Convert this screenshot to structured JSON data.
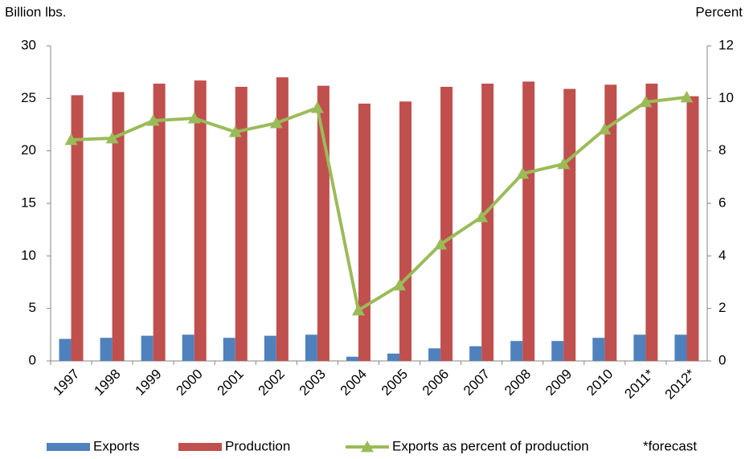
{
  "chart_data": {
    "type": "bar",
    "y_label": "Billion lbs.",
    "y2_label": "Percent",
    "note": "*forecast",
    "categories": [
      "1997",
      "1998",
      "1999",
      "2000",
      "2001",
      "2002",
      "2003",
      "2004",
      "2005",
      "2006",
      "2007",
      "2008",
      "2009",
      "2010",
      "2011*",
      "2012*"
    ],
    "series": [
      {
        "name": "Exports",
        "color": "#4f81bd",
        "type": "bar",
        "values": [
          2.1,
          2.2,
          2.4,
          2.5,
          2.2,
          2.4,
          2.5,
          0.4,
          0.7,
          1.2,
          1.4,
          1.9,
          1.9,
          2.2,
          2.5,
          2.5
        ]
      },
      {
        "name": "Production",
        "color": "#c0504d",
        "type": "bar",
        "values": [
          25.3,
          25.6,
          26.4,
          26.7,
          26.1,
          27.0,
          26.2,
          24.5,
          24.7,
          26.1,
          26.4,
          26.6,
          25.9,
          26.3,
          26.4,
          25.2
        ]
      },
      {
        "name": "Exports as percent of production",
        "color": "#9bbb59",
        "type": "line",
        "axis": "y2",
        "values": [
          8.42,
          8.48,
          9.15,
          9.24,
          8.72,
          9.06,
          9.64,
          1.93,
          2.88,
          4.44,
          5.48,
          7.13,
          7.5,
          8.82,
          9.86,
          10.04
        ]
      }
    ],
    "ylim": [
      0,
      30
    ],
    "yticks": [
      0,
      5,
      10,
      15,
      20,
      25,
      30
    ],
    "y2lim": [
      0,
      12
    ],
    "y2ticks": [
      0,
      2,
      4,
      6,
      8,
      10,
      12
    ]
  }
}
